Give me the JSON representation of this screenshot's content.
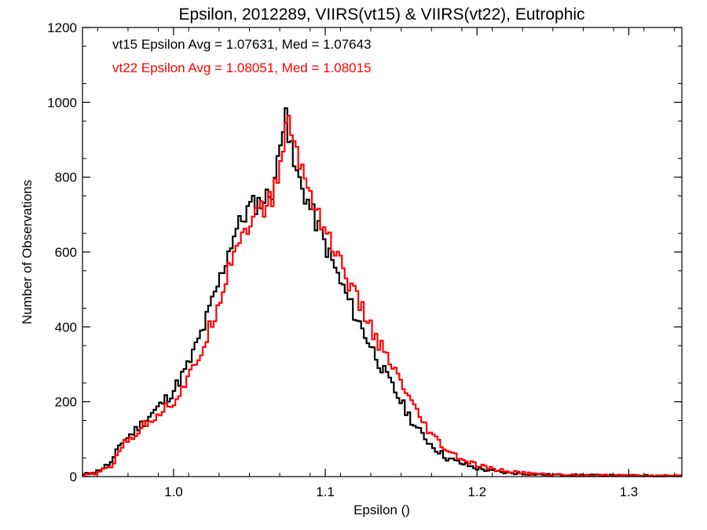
{
  "chart_data": {
    "type": "line",
    "title": "Epsilon, 2012289, VIIRS(vt15) & VIIRS(vt22), Eutrophic",
    "xlabel": "Epsilon ()",
    "ylabel": "Number of Observations",
    "xlim": [
      0.94,
      1.335
    ],
    "ylim": [
      0,
      1200
    ],
    "xticks": [
      "1.0",
      "1.1",
      "1.2",
      "1.3"
    ],
    "xtick_values": [
      1.0,
      1.1,
      1.2,
      1.3
    ],
    "yticks": [
      "0",
      "200",
      "400",
      "600",
      "800",
      "1000",
      "1200"
    ],
    "ytick_values": [
      0,
      200,
      400,
      600,
      800,
      1000,
      1200
    ],
    "grid": false,
    "annotations": [
      {
        "text": "vt15 Epsilon Avg = 1.07631, Med = 1.07643",
        "color": "#000000"
      },
      {
        "text": "vt22 Epsilon Avg = 1.08051, Med = 1.08015",
        "color": "#ff0000"
      }
    ],
    "series": [
      {
        "color": "#000000",
        "x": [
          0.94,
          0.95,
          0.96,
          0.965,
          0.97,
          0.98,
          0.99,
          1.0,
          1.01,
          1.02,
          1.03,
          1.04,
          1.05,
          1.06,
          1.065,
          1.07,
          1.074,
          1.076,
          1.08,
          1.09,
          1.1,
          1.11,
          1.12,
          1.13,
          1.14,
          1.15,
          1.16,
          1.17,
          1.18,
          1.19,
          1.2,
          1.21,
          1.22,
          1.23,
          1.24,
          1.25,
          1.27,
          1.3,
          1.335
        ],
        "y": [
          5,
          15,
          40,
          90,
          105,
          145,
          185,
          230,
          300,
          400,
          520,
          650,
          720,
          740,
          765,
          860,
          1020,
          900,
          820,
          720,
          620,
          520,
          430,
          350,
          270,
          200,
          130,
          85,
          50,
          35,
          22,
          15,
          10,
          8,
          6,
          5,
          4,
          3,
          2
        ]
      },
      {
        "color": "#ff0000",
        "x": [
          0.94,
          0.95,
          0.96,
          0.965,
          0.97,
          0.98,
          0.99,
          1.0,
          1.01,
          1.02,
          1.03,
          1.04,
          1.05,
          1.06,
          1.065,
          1.07,
          1.076,
          1.08,
          1.09,
          1.1,
          1.11,
          1.12,
          1.13,
          1.14,
          1.15,
          1.16,
          1.17,
          1.18,
          1.19,
          1.2,
          1.21,
          1.22,
          1.23,
          1.24,
          1.25,
          1.27,
          1.3,
          1.335
        ],
        "y": [
          3,
          10,
          30,
          80,
          95,
          135,
          170,
          200,
          260,
          350,
          470,
          610,
          680,
          720,
          740,
          830,
          960,
          880,
          760,
          660,
          570,
          480,
          400,
          320,
          250,
          170,
          110,
          70,
          45,
          30,
          20,
          14,
          10,
          7,
          5,
          4,
          3,
          2
        ]
      }
    ]
  }
}
